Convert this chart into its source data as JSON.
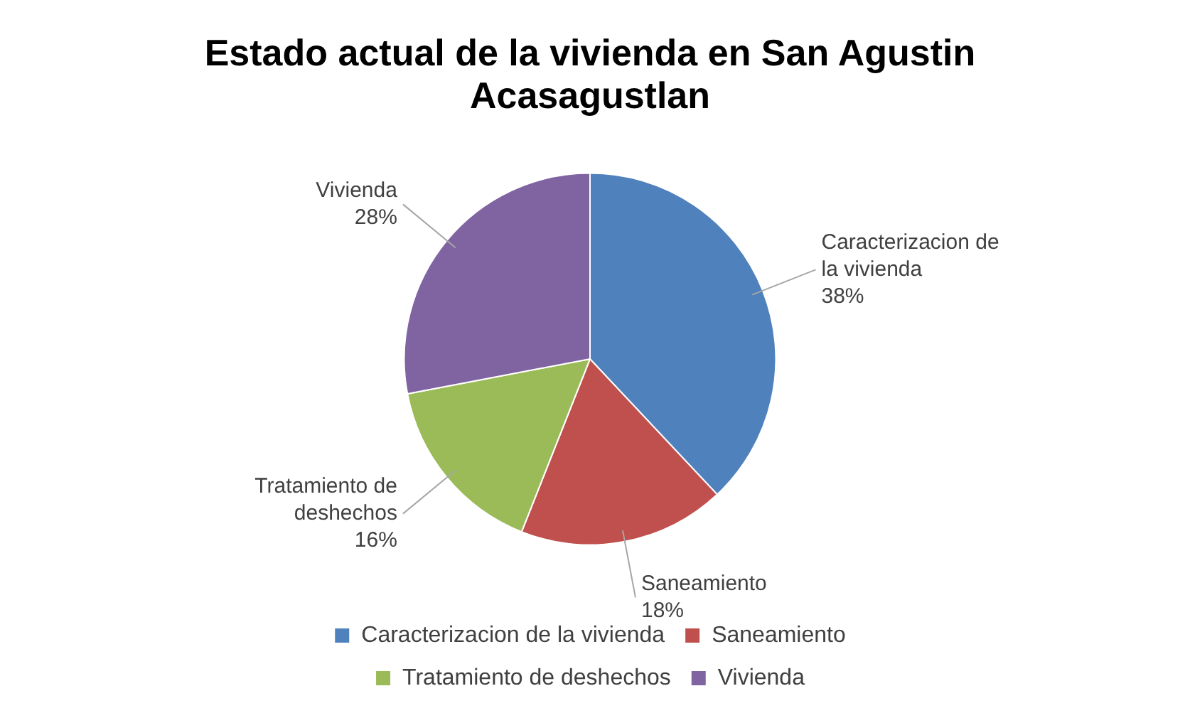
{
  "chart_data": {
    "type": "pie",
    "title": "Estado actual de la vivienda en San Agustin Acasagustlan",
    "categories": [
      "Caracterizacion de la vivienda",
      "Saneamiento",
      "Tratamiento de deshechos",
      "Vivienda"
    ],
    "values": [
      38,
      18,
      16,
      28
    ],
    "colors": [
      "#4f81bd",
      "#c0504d",
      "#9bbb59",
      "#8064a2"
    ],
    "value_labels": [
      "38%",
      "18%",
      "16%",
      "28%"
    ],
    "legend": "bottom"
  }
}
